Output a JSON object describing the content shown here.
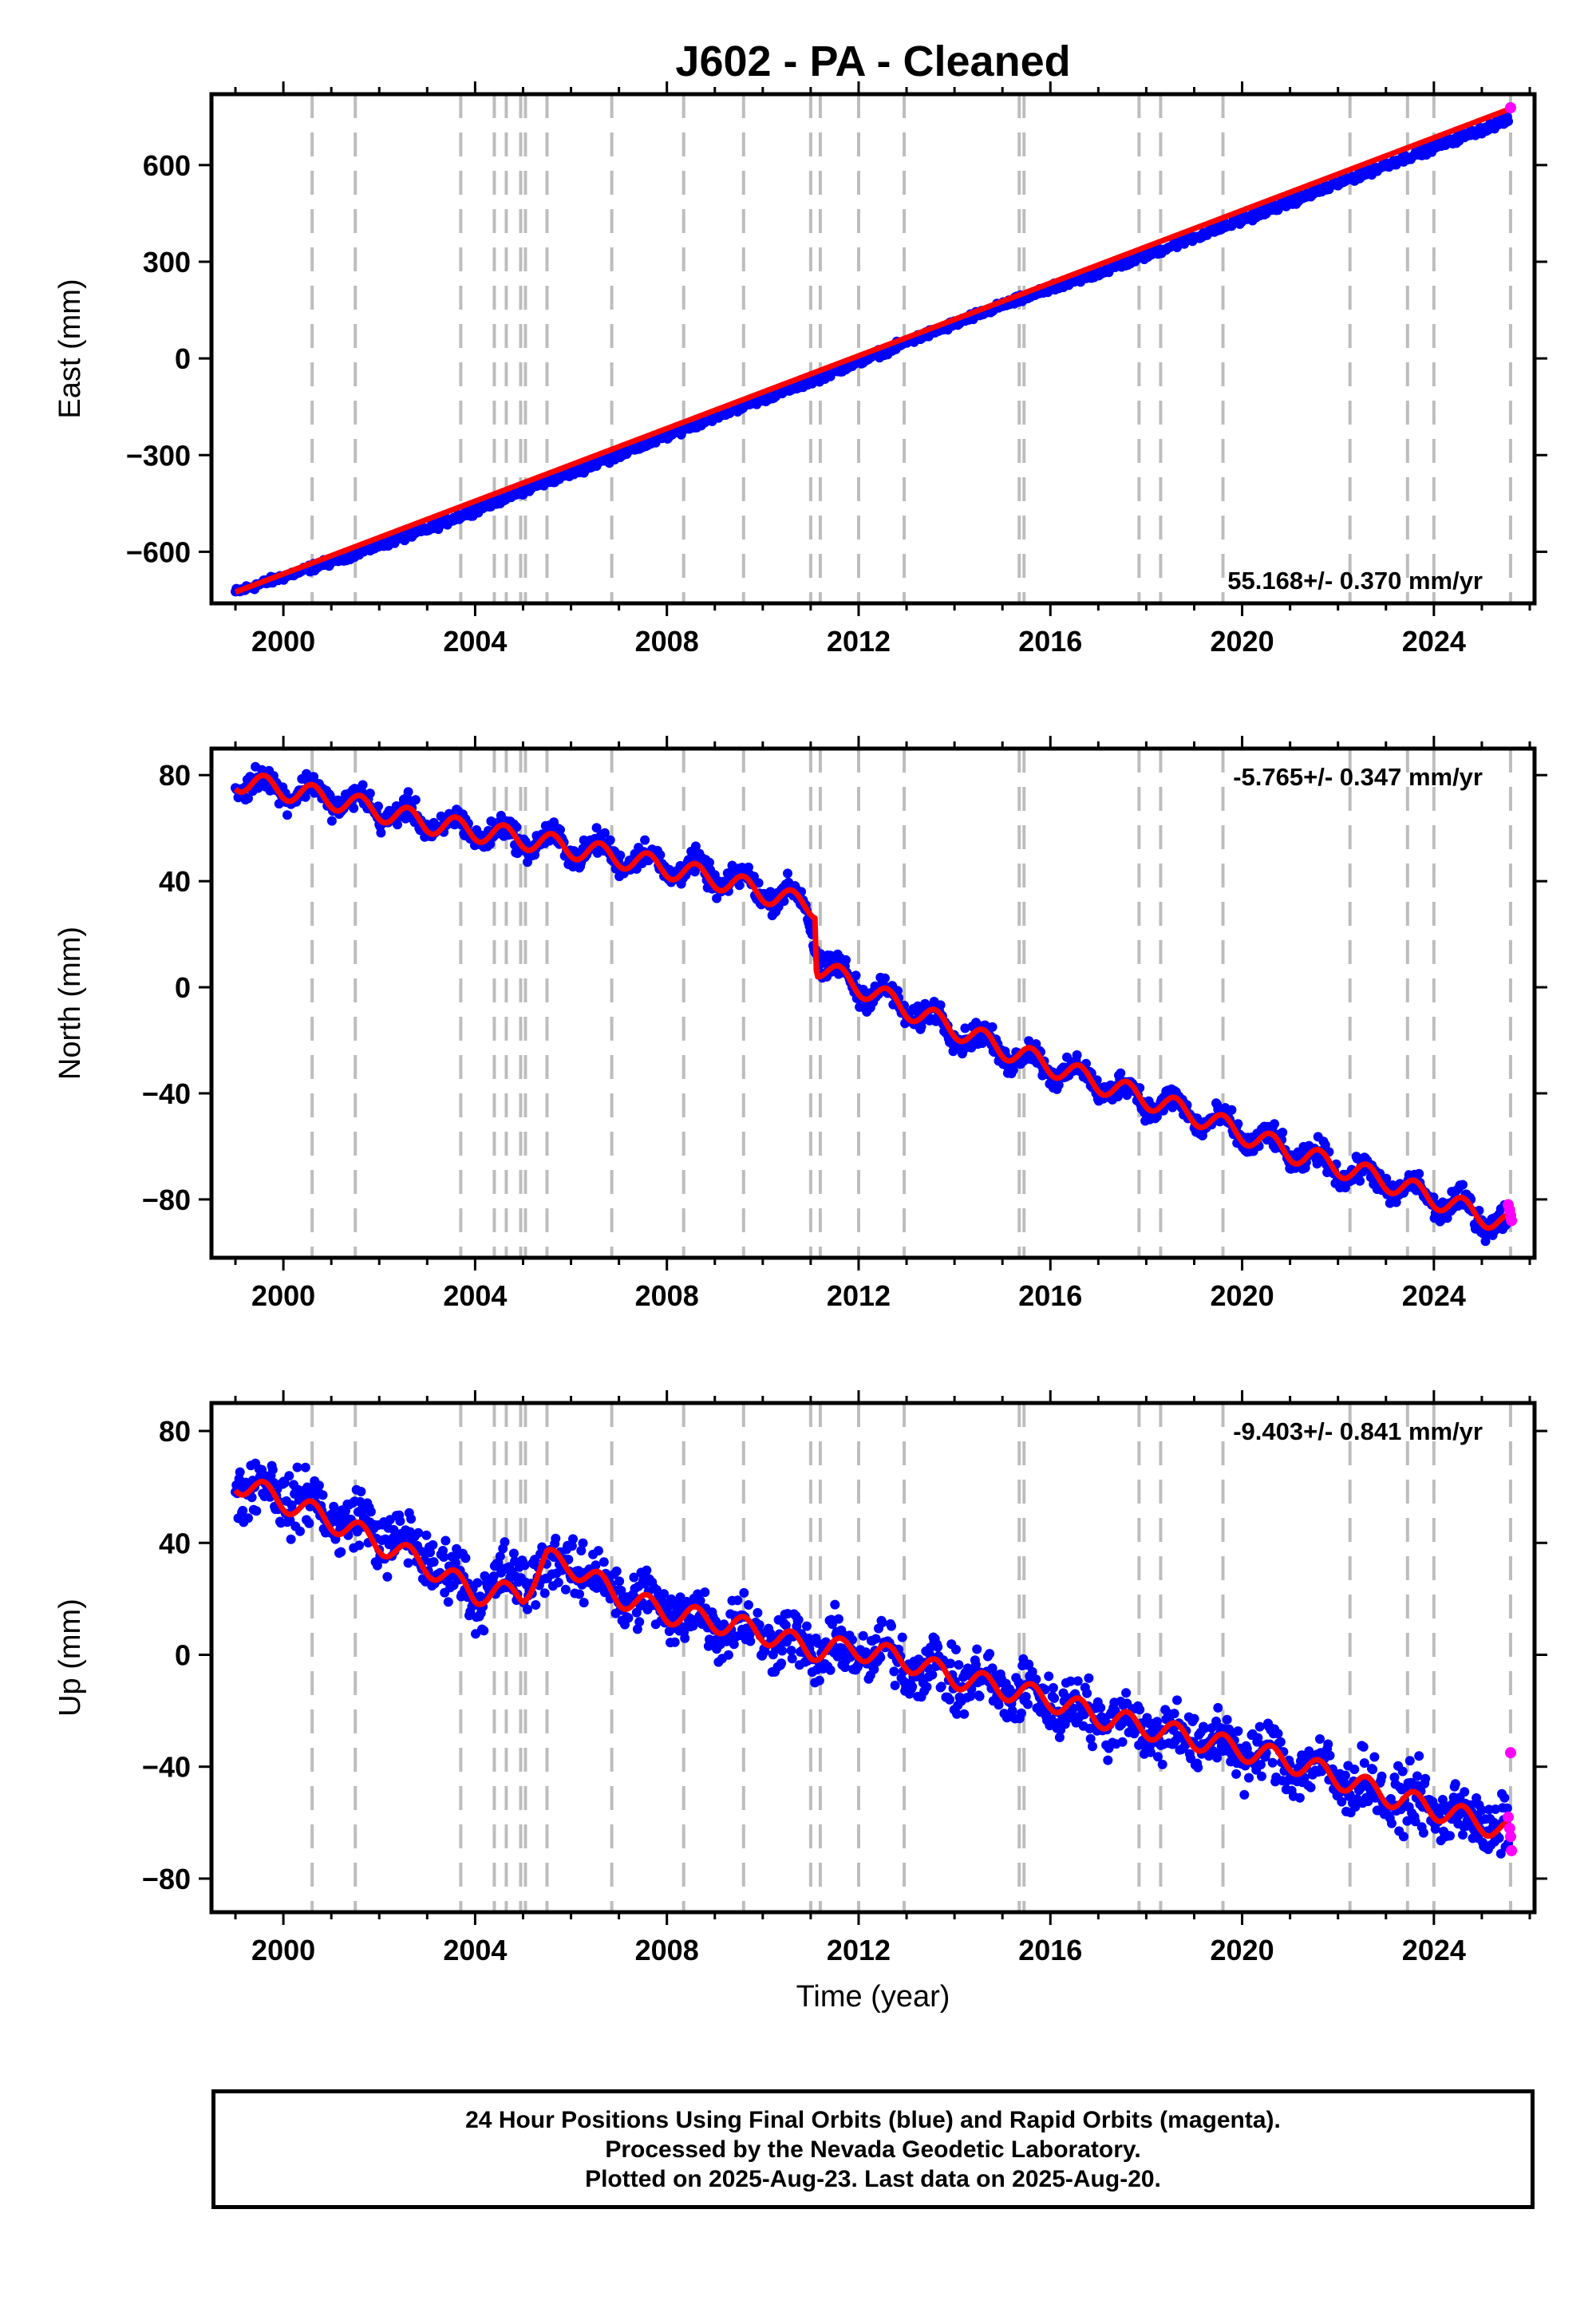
{
  "figure": {
    "title": "J602  - PA - Cleaned",
    "xlabel": "Time (year)"
  },
  "caption": {
    "line1": "24 Hour Positions Using Final Orbits (blue) and Rapid Orbits (magenta).",
    "line2": "Processed by the Nevada Geodetic Laboratory.",
    "line3": "Plotted on 2025-Aug-23. Last data on 2025-Aug-20."
  },
  "colors": {
    "final_orbits": "#0000ff",
    "rapid_orbits": "#ff00ff",
    "model_fit": "#ff0000",
    "equipment_change_lines": "#bdbdbd"
  },
  "chart_data": [
    {
      "type": "scatter",
      "panel": "east",
      "ylabel": "East (mm)",
      "rate_label": "55.168+/- 0.370 mm/yr",
      "rate_position": "bottom-right",
      "xlim": [
        1998.5,
        2026.1
      ],
      "ylim": [
        -760,
        820
      ],
      "x_ticks": [
        2000,
        2004,
        2008,
        2012,
        2016,
        2020,
        2024
      ],
      "y_ticks": [
        -600,
        -300,
        0,
        300,
        600
      ],
      "x_tick_labels": [
        "2000",
        "2004",
        "2008",
        "2012",
        "2016",
        "2020",
        "2024"
      ],
      "y_tick_labels": [
        "−600",
        "−300",
        "0",
        "300",
        "600"
      ],
      "x_minor_tick_step": 1,
      "series": [
        {
          "role": "final_orbits",
          "x": [
            1999.0,
            2001.0,
            2003.0,
            2005.0,
            2007.0,
            2009.0,
            2011.0,
            2013.0,
            2015.0,
            2017.0,
            2019.0,
            2021.0,
            2023.0,
            2025.0,
            2025.55
          ],
          "y": [
            -725,
            -630,
            -530,
            -410,
            -300,
            -180,
            -70,
            50,
            165,
            265,
            375,
            485,
            600,
            710,
            740
          ],
          "scatter_mm": 10
        },
        {
          "role": "model_fit",
          "x": [
            1999.0,
            2025.6
          ],
          "y": [
            -725,
            775
          ]
        },
        {
          "role": "rapid_orbits",
          "x": [
            2025.6
          ],
          "y": [
            778
          ]
        }
      ],
      "equipment_changes": [
        2000.6,
        2001.5,
        2003.7,
        2004.4,
        2004.65,
        2004.95,
        2005.05,
        2005.5,
        2006.85,
        2008.35,
        2009.6,
        2011.0,
        2011.2,
        2012.0,
        2012.95,
        2015.35,
        2015.45,
        2017.85,
        2018.3,
        2019.6,
        2022.25,
        2023.45,
        2024.0,
        2025.6
      ]
    },
    {
      "type": "scatter",
      "panel": "north",
      "ylabel": "North (mm)",
      "rate_label": "-5.765+/- 0.347 mm/yr",
      "rate_position": "top-right",
      "xlim": [
        1998.5,
        2026.1
      ],
      "ylim": [
        -102,
        90
      ],
      "x_ticks": [
        2000,
        2004,
        2008,
        2012,
        2016,
        2020,
        2024
      ],
      "y_ticks": [
        -80,
        -40,
        0,
        40,
        80
      ],
      "x_tick_labels": [
        "2000",
        "2004",
        "2008",
        "2012",
        "2016",
        "2020",
        "2024"
      ],
      "y_tick_labels": [
        "−80",
        "−40",
        "0",
        "40",
        "80"
      ],
      "x_minor_tick_step": 1,
      "series": [
        {
          "role": "final_orbits",
          "x": [
            1999.0,
            2001.0,
            2003.0,
            2005.0,
            2007.0,
            2009.0,
            2010.9,
            2011.25,
            2013.0,
            2015.0,
            2017.0,
            2019.0,
            2021.0,
            2023.0,
            2025.0,
            2025.55
          ],
          "y": [
            78,
            72,
            62,
            56,
            50,
            42,
            32,
            8,
            -8,
            -24,
            -36,
            -48,
            -62,
            -74,
            -86,
            -90
          ],
          "scatter_mm": 4
        },
        {
          "role": "model_fit",
          "x": [
            1999.0,
            2001.0,
            2003.0,
            2005.0,
            2007.0,
            2009.0,
            2011.1,
            2011.12,
            2013.0,
            2015.0,
            2017.0,
            2019.0,
            2021.0,
            2023.0,
            2025.0,
            2025.6
          ],
          "y": [
            78,
            71,
            62,
            56,
            49,
            41,
            30,
            8,
            -8,
            -23,
            -36,
            -48,
            -62,
            -73,
            -86,
            -90
          ],
          "seasonal_amplitude_mm": 4
        },
        {
          "role": "rapid_orbits",
          "x": [
            2025.55,
            2025.58,
            2025.6,
            2025.62
          ],
          "y": [
            -82,
            -84,
            -86,
            -88
          ]
        }
      ],
      "equipment_changes": [
        2000.6,
        2001.5,
        2003.7,
        2004.4,
        2004.65,
        2004.95,
        2005.05,
        2005.5,
        2006.85,
        2008.35,
        2009.6,
        2011.0,
        2011.2,
        2012.0,
        2012.95,
        2015.35,
        2015.45,
        2017.85,
        2018.3,
        2019.6,
        2022.25,
        2023.45,
        2024.0,
        2025.6
      ]
    },
    {
      "type": "scatter",
      "panel": "up",
      "ylabel": "Up (mm)",
      "rate_label": "-9.403+/- 0.841 mm/yr",
      "rate_position": "top-right",
      "xlim": [
        1998.5,
        2026.1
      ],
      "ylim": [
        -92,
        90
      ],
      "x_ticks": [
        2000,
        2004,
        2008,
        2012,
        2016,
        2020,
        2024
      ],
      "y_ticks": [
        -80,
        -40,
        0,
        40,
        80
      ],
      "x_tick_labels": [
        "2000",
        "2004",
        "2008",
        "2012",
        "2016",
        "2020",
        "2024"
      ],
      "y_tick_labels": [
        "−80",
        "−40",
        "0",
        "40",
        "80"
      ],
      "x_minor_tick_step": 1,
      "series": [
        {
          "role": "final_orbits",
          "x": [
            1999.0,
            2000.0,
            2001.0,
            2002.0,
            2003.0,
            2004.0,
            2005.0,
            2006.0,
            2007.0,
            2008.0,
            2009.0,
            2010.0,
            2011.0,
            2012.0,
            2013.0,
            2014.0,
            2015.0,
            2016.0,
            2017.0,
            2018.0,
            2019.0,
            2020.0,
            2021.0,
            2022.0,
            2023.0,
            2024.0,
            2025.0,
            2025.55
          ],
          "y": [
            62,
            58,
            50,
            44,
            35,
            22,
            28,
            33,
            22,
            16,
            12,
            8,
            2,
            1,
            -2,
            -8,
            -12,
            -16,
            -22,
            -26,
            -30,
            -34,
            -38,
            -44,
            -50,
            -55,
            -60,
            -64
          ],
          "scatter_mm": 9
        },
        {
          "role": "model_fit",
          "x": [
            1999.0,
            2000.0,
            2001.0,
            2002.0,
            2003.0,
            2004.0,
            2005.0,
            2005.5,
            2006.0,
            2007.0,
            2008.0,
            2009.0,
            2010.0,
            2011.0,
            2012.0,
            2013.0,
            2014.0,
            2015.0,
            2016.0,
            2017.0,
            2018.0,
            2019.0,
            2020.0,
            2021.0,
            2022.0,
            2023.0,
            2024.0,
            2025.0,
            2025.6
          ],
          "y": [
            62,
            55,
            48,
            40,
            32,
            22,
            22,
            34,
            32,
            21,
            15,
            12,
            8,
            2,
            2,
            -2,
            -8,
            -12,
            -16,
            -22,
            -26,
            -30,
            -34,
            -38,
            -44,
            -50,
            -55,
            -60,
            -64
          ],
          "seasonal_amplitude_mm": 4
        },
        {
          "role": "rapid_orbits",
          "x": [
            2025.55,
            2025.58,
            2025.6,
            2025.6,
            2025.62
          ],
          "y": [
            -58,
            -62,
            -65,
            -35,
            -70
          ]
        }
      ],
      "equipment_changes": [
        2000.6,
        2001.5,
        2003.7,
        2004.4,
        2004.65,
        2004.95,
        2005.05,
        2005.5,
        2006.85,
        2008.35,
        2009.6,
        2011.0,
        2011.2,
        2012.0,
        2012.95,
        2015.35,
        2015.45,
        2017.85,
        2018.3,
        2019.6,
        2022.25,
        2023.45,
        2024.0,
        2025.6
      ]
    }
  ]
}
